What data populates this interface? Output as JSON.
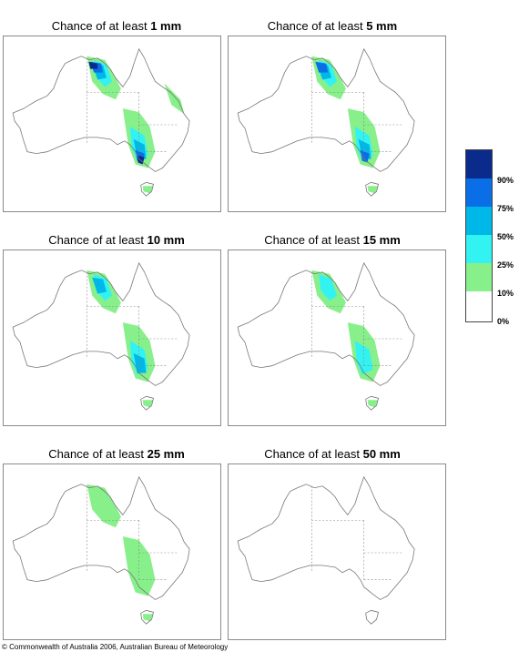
{
  "panels": [
    {
      "title_prefix": "Chance of at least",
      "threshold": "1 mm",
      "intensity": 5
    },
    {
      "title_prefix": "Chance of at least",
      "threshold": "5 mm",
      "intensity": 4
    },
    {
      "title_prefix": "Chance of at least",
      "threshold": "10 mm",
      "intensity": 3
    },
    {
      "title_prefix": "Chance of at least",
      "threshold": "15 mm",
      "intensity": 2.5
    },
    {
      "title_prefix": "Chance of at least",
      "threshold": "25 mm",
      "intensity": 1
    },
    {
      "title_prefix": "Chance of at least",
      "threshold": "50 mm",
      "intensity": 0
    }
  ],
  "legend": {
    "labels": [
      "90%",
      "75%",
      "50%",
      "25%",
      "10%",
      "0%"
    ],
    "colors": [
      "#0a2a8c",
      "#0a6ee6",
      "#00b8e8",
      "#33f2f2",
      "#88f08a",
      "#ffffff"
    ]
  },
  "footer": "© Commonwealth of Australia 2006, Australian Bureau of Meteorology"
}
